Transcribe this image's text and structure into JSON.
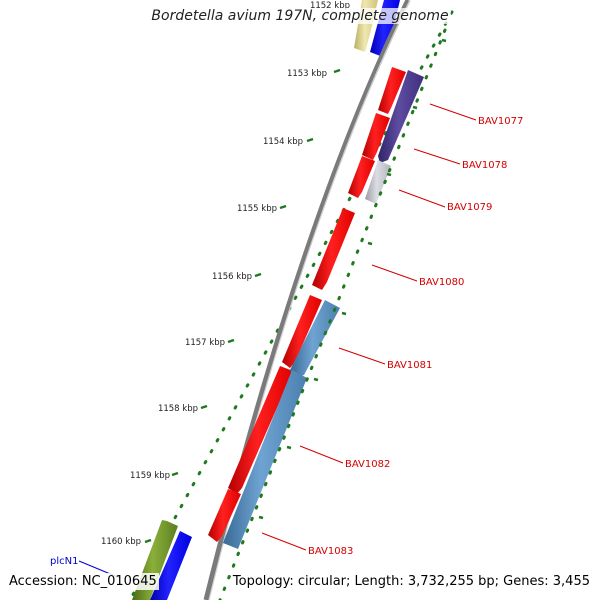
{
  "title": "Bordetella avium 197N, complete genome",
  "accession": "Accession: NC_010645",
  "summary": "Topology: circular; Length: 3,732,255 bp; Genes: 3,455",
  "ruler_labels": [
    "1152 kbp",
    "1153 kbp",
    "1154 kbp",
    "1155 kbp",
    "1156 kbp",
    "1157 kbp",
    "1158 kbp",
    "1159 kbp",
    "1160 kbp"
  ],
  "gene_labels": [
    {
      "text": "BAV1077",
      "color": "#d40000"
    },
    {
      "text": "BAV1078",
      "color": "#d40000"
    },
    {
      "text": "BAV1079",
      "color": "#d40000"
    },
    {
      "text": "BAV1080",
      "color": "#d40000"
    },
    {
      "text": "BAV1081",
      "color": "#d40000"
    },
    {
      "text": "BAV1082",
      "color": "#d40000"
    },
    {
      "text": "BAV1083",
      "color": "#d40000"
    },
    {
      "text": "plcN1",
      "color": "#0000cc"
    }
  ],
  "colors": {
    "cds": "#ff0000",
    "blue_feature": "#0000ff",
    "steel_feature": "#4f86b8",
    "purple_feature": "#4d3b8c",
    "grey_feature": "#c4c4cc",
    "olive_feature": "#6b8e23",
    "pale_feature": "#d8d08a",
    "backbone": "#808080",
    "ruler_dots": "#1f7a1f"
  }
}
